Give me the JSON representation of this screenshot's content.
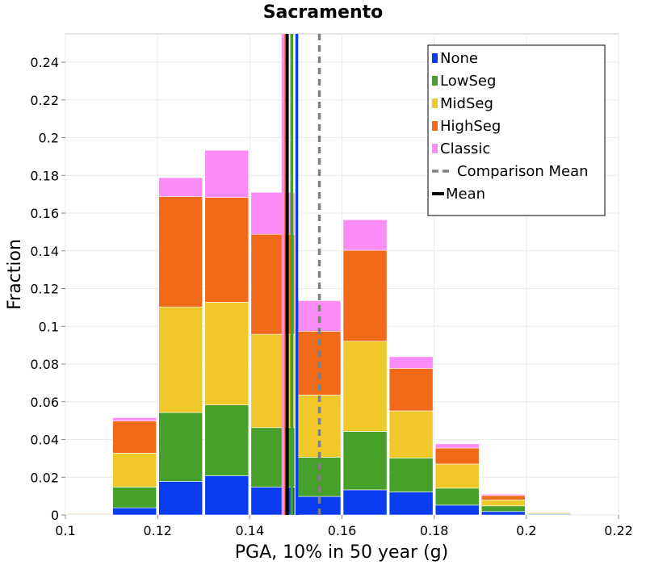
{
  "chart_data": {
    "type": "bar",
    "stacked": true,
    "title": "Sacramento",
    "xlabel": "PGA, 10% in 50 year (g)",
    "ylabel": "Fraction",
    "xlim": [
      0.1,
      0.22
    ],
    "ylim": [
      0,
      0.255
    ],
    "x_ticks": [
      "0.1",
      "0.12",
      "0.14",
      "0.16",
      "0.18",
      "0.2",
      "0.22"
    ],
    "y_ticks": [
      "0",
      "0.02",
      "0.04",
      "0.06",
      "0.08",
      "0.1",
      "0.12",
      "0.14",
      "0.16",
      "0.18",
      "0.2",
      "0.22",
      "0.24"
    ],
    "grid": true,
    "legend_position": "top-right",
    "bin_width": 0.01,
    "bin_centers": [
      0.105,
      0.115,
      0.125,
      0.135,
      0.145,
      0.155,
      0.165,
      0.175,
      0.185,
      0.195,
      0.205
    ],
    "series": [
      {
        "name": "None",
        "color": "#0a3cf0",
        "values": [
          0.0003,
          0.0038,
          0.0178,
          0.0208,
          0.0148,
          0.0098,
          0.0133,
          0.0122,
          0.0052,
          0.0018,
          0.0004
        ]
      },
      {
        "name": "LowSeg",
        "color": "#47a02a",
        "values": [
          0.0003,
          0.011,
          0.0365,
          0.0375,
          0.0315,
          0.0208,
          0.031,
          0.018,
          0.009,
          0.003,
          0.0004
        ]
      },
      {
        "name": "MidSeg",
        "color": "#f0c82a",
        "values": [
          0.0004,
          0.018,
          0.056,
          0.0545,
          0.0495,
          0.033,
          0.0478,
          0.025,
          0.0128,
          0.0032,
          0.0004
        ]
      },
      {
        "name": "HighSeg",
        "color": "#f06a1a",
        "values": [
          0.0002,
          0.017,
          0.0585,
          0.0555,
          0.053,
          0.0338,
          0.0482,
          0.0225,
          0.0085,
          0.0023,
          0.0003
        ]
      },
      {
        "name": "Classic",
        "color": "#fa8cf5",
        "values": [
          0.0002,
          0.0018,
          0.01,
          0.025,
          0.0222,
          0.0162,
          0.0162,
          0.0062,
          0.0022,
          0.0007,
          0.0001
        ]
      }
    ],
    "mean_lines": [
      {
        "series": "HighSeg",
        "x": 0.1474,
        "color": "#f06a1a",
        "style": "solid"
      },
      {
        "series": "Classic",
        "x": 0.1472,
        "color": "#fa8cf5",
        "style": "solid"
      },
      {
        "series": "MidSeg",
        "x": 0.1481,
        "color": "#f0c82a",
        "style": "solid"
      },
      {
        "series": "LowSeg",
        "x": 0.1491,
        "color": "#47a02a",
        "style": "solid"
      },
      {
        "series": "None",
        "x": 0.1502,
        "color": "#0a3cf0",
        "style": "solid"
      },
      {
        "series": "Mean",
        "x": 0.1481,
        "color": "#000000",
        "style": "solid"
      },
      {
        "series": "Comparison Mean",
        "x": 0.1551,
        "color": "#808080",
        "style": "dashed"
      }
    ],
    "legend": [
      {
        "label": "None",
        "color": "#0a3cf0",
        "kind": "square"
      },
      {
        "label": "LowSeg",
        "color": "#47a02a",
        "kind": "square"
      },
      {
        "label": "MidSeg",
        "color": "#f0c82a",
        "kind": "square"
      },
      {
        "label": "HighSeg",
        "color": "#f06a1a",
        "kind": "square"
      },
      {
        "label": "Classic",
        "color": "#fa8cf5",
        "kind": "square"
      },
      {
        "label": "Comparison Mean",
        "color": "#808080",
        "kind": "dashed"
      },
      {
        "label": "Mean",
        "color": "#000000",
        "kind": "line"
      }
    ]
  }
}
